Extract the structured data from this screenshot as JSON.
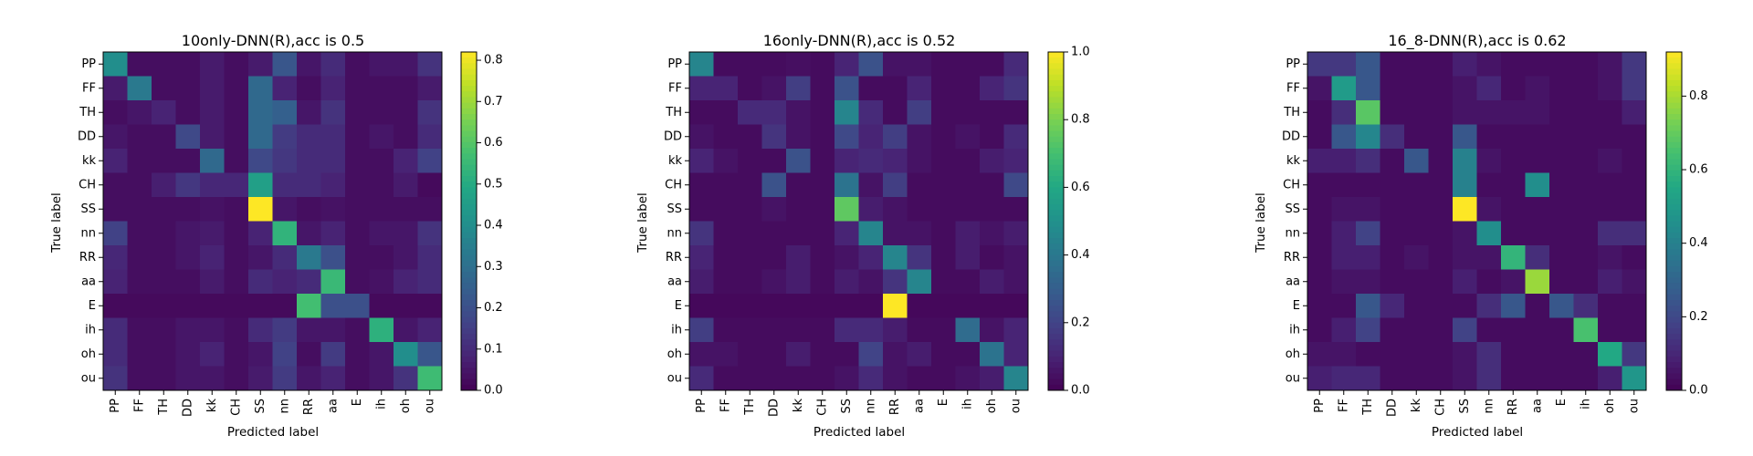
{
  "chart_data": [
    {
      "type": "heatmap",
      "title": "10only-DNN(R),acc is 0.5",
      "xlabel": "Predicted label",
      "ylabel": "True label",
      "labels": [
        "PP",
        "FF",
        "TH",
        "DD",
        "kk",
        "CH",
        "SS",
        "nn",
        "RR",
        "aa",
        "E",
        "ih",
        "oh",
        "ou"
      ],
      "colorbar": {
        "range": [
          0,
          0.82
        ],
        "ticks": [
          "0.0",
          "0.1",
          "0.2",
          "0.3",
          "0.4",
          "0.5",
          "0.6",
          "0.7",
          "0.8"
        ]
      },
      "colormap": "viridis",
      "matrix": [
        [
          0.4,
          0.03,
          0.03,
          0.03,
          0.06,
          0.03,
          0.06,
          0.22,
          0.05,
          0.1,
          0.03,
          0.05,
          0.05,
          0.12
        ],
        [
          0.06,
          0.33,
          0.03,
          0.03,
          0.06,
          0.03,
          0.28,
          0.08,
          0.03,
          0.08,
          0.03,
          0.03,
          0.03,
          0.06
        ],
        [
          0.03,
          0.05,
          0.08,
          0.03,
          0.06,
          0.03,
          0.28,
          0.25,
          0.05,
          0.12,
          0.03,
          0.03,
          0.03,
          0.12
        ],
        [
          0.05,
          0.03,
          0.03,
          0.18,
          0.06,
          0.03,
          0.28,
          0.14,
          0.1,
          0.1,
          0.03,
          0.05,
          0.03,
          0.1
        ],
        [
          0.08,
          0.03,
          0.03,
          0.03,
          0.28,
          0.03,
          0.18,
          0.13,
          0.1,
          0.1,
          0.03,
          0.03,
          0.08,
          0.16
        ],
        [
          0.03,
          0.03,
          0.07,
          0.13,
          0.09,
          0.09,
          0.46,
          0.1,
          0.1,
          0.08,
          0.03,
          0.03,
          0.06,
          0.02
        ],
        [
          0.03,
          0.03,
          0.03,
          0.03,
          0.04,
          0.03,
          0.82,
          0.05,
          0.03,
          0.04,
          0.03,
          0.03,
          0.03,
          0.03
        ],
        [
          0.16,
          0.03,
          0.03,
          0.05,
          0.06,
          0.03,
          0.08,
          0.53,
          0.05,
          0.08,
          0.03,
          0.05,
          0.05,
          0.12
        ],
        [
          0.09,
          0.03,
          0.03,
          0.05,
          0.08,
          0.03,
          0.05,
          0.1,
          0.33,
          0.2,
          0.03,
          0.03,
          0.05,
          0.1
        ],
        [
          0.08,
          0.03,
          0.03,
          0.03,
          0.06,
          0.03,
          0.1,
          0.08,
          0.1,
          0.55,
          0.03,
          0.04,
          0.08,
          0.1
        ],
        [
          0.02,
          0.02,
          0.02,
          0.02,
          0.02,
          0.02,
          0.02,
          0.02,
          0.57,
          0.2,
          0.2,
          0.02,
          0.02,
          0.02
        ],
        [
          0.1,
          0.03,
          0.03,
          0.05,
          0.05,
          0.03,
          0.1,
          0.14,
          0.05,
          0.05,
          0.03,
          0.52,
          0.05,
          0.08
        ],
        [
          0.1,
          0.03,
          0.03,
          0.05,
          0.08,
          0.03,
          0.05,
          0.16,
          0.03,
          0.14,
          0.03,
          0.05,
          0.4,
          0.22
        ],
        [
          0.12,
          0.03,
          0.03,
          0.05,
          0.05,
          0.03,
          0.06,
          0.14,
          0.05,
          0.08,
          0.03,
          0.05,
          0.12,
          0.56
        ]
      ]
    },
    {
      "type": "heatmap",
      "title": "16only-DNN(R),acc is 0.52",
      "xlabel": "Predicted label",
      "ylabel": "True label",
      "labels": [
        "PP",
        "FF",
        "TH",
        "DD",
        "kk",
        "CH",
        "SS",
        "nn",
        "RR",
        "aa",
        "E",
        "ih",
        "oh",
        "ou"
      ],
      "colorbar": {
        "range": [
          0,
          1.0
        ],
        "ticks": [
          "0.0",
          "0.2",
          "0.4",
          "0.6",
          "0.8",
          "1.0"
        ]
      },
      "colormap": "viridis",
      "matrix": [
        [
          0.45,
          0.03,
          0.03,
          0.03,
          0.04,
          0.03,
          0.1,
          0.25,
          0.05,
          0.05,
          0.03,
          0.03,
          0.03,
          0.12
        ],
        [
          0.1,
          0.1,
          0.03,
          0.05,
          0.18,
          0.03,
          0.25,
          0.03,
          0.03,
          0.1,
          0.03,
          0.03,
          0.1,
          0.15
        ],
        [
          0.03,
          0.03,
          0.12,
          0.12,
          0.05,
          0.03,
          0.45,
          0.12,
          0.03,
          0.18,
          0.03,
          0.03,
          0.03,
          0.03
        ],
        [
          0.05,
          0.03,
          0.03,
          0.15,
          0.05,
          0.03,
          0.22,
          0.1,
          0.18,
          0.05,
          0.03,
          0.05,
          0.03,
          0.12
        ],
        [
          0.1,
          0.05,
          0.03,
          0.03,
          0.25,
          0.03,
          0.1,
          0.12,
          0.1,
          0.05,
          0.03,
          0.03,
          0.08,
          0.1
        ],
        [
          0.03,
          0.03,
          0.03,
          0.25,
          0.03,
          0.03,
          0.38,
          0.05,
          0.18,
          0.03,
          0.03,
          0.03,
          0.03,
          0.22
        ],
        [
          0.03,
          0.03,
          0.03,
          0.05,
          0.03,
          0.03,
          0.75,
          0.08,
          0.05,
          0.03,
          0.03,
          0.03,
          0.03,
          0.03
        ],
        [
          0.15,
          0.03,
          0.03,
          0.03,
          0.03,
          0.03,
          0.1,
          0.45,
          0.05,
          0.05,
          0.03,
          0.08,
          0.05,
          0.08
        ],
        [
          0.1,
          0.03,
          0.03,
          0.03,
          0.08,
          0.03,
          0.05,
          0.1,
          0.45,
          0.15,
          0.03,
          0.08,
          0.03,
          0.05
        ],
        [
          0.08,
          0.03,
          0.03,
          0.05,
          0.08,
          0.03,
          0.08,
          0.05,
          0.15,
          0.45,
          0.03,
          0.03,
          0.08,
          0.05
        ],
        [
          0.02,
          0.02,
          0.02,
          0.02,
          0.02,
          0.02,
          0.02,
          0.02,
          1.0,
          0.02,
          0.02,
          0.02,
          0.02,
          0.02
        ],
        [
          0.18,
          0.03,
          0.03,
          0.03,
          0.03,
          0.03,
          0.12,
          0.12,
          0.08,
          0.03,
          0.03,
          0.35,
          0.05,
          0.1
        ],
        [
          0.05,
          0.05,
          0.03,
          0.03,
          0.08,
          0.03,
          0.03,
          0.2,
          0.05,
          0.08,
          0.03,
          0.03,
          0.38,
          0.1
        ],
        [
          0.12,
          0.03,
          0.03,
          0.03,
          0.03,
          0.03,
          0.05,
          0.12,
          0.05,
          0.03,
          0.03,
          0.05,
          0.08,
          0.45
        ]
      ]
    },
    {
      "type": "heatmap",
      "title": "16_8-DNN(R),acc is 0.62",
      "xlabel": "Predicted label",
      "ylabel": "True label",
      "labels": [
        "PP",
        "FF",
        "TH",
        "DD",
        "kk",
        "CH",
        "SS",
        "nn",
        "RR",
        "aa",
        "E",
        "ih",
        "oh",
        "ou"
      ],
      "colorbar": {
        "range": [
          0,
          0.92
        ],
        "ticks": [
          "0.0",
          "0.2",
          "0.4",
          "0.6",
          "0.8"
        ]
      },
      "colormap": "viridis",
      "matrix": [
        [
          0.15,
          0.15,
          0.25,
          0.03,
          0.03,
          0.03,
          0.08,
          0.05,
          0.03,
          0.03,
          0.03,
          0.03,
          0.05,
          0.15
        ],
        [
          0.05,
          0.5,
          0.25,
          0.03,
          0.03,
          0.03,
          0.05,
          0.1,
          0.03,
          0.05,
          0.03,
          0.03,
          0.05,
          0.15
        ],
        [
          0.03,
          0.12,
          0.68,
          0.03,
          0.03,
          0.03,
          0.05,
          0.05,
          0.05,
          0.05,
          0.03,
          0.03,
          0.03,
          0.08
        ],
        [
          0.03,
          0.25,
          0.42,
          0.12,
          0.03,
          0.03,
          0.25,
          0.03,
          0.03,
          0.03,
          0.03,
          0.03,
          0.03,
          0.03
        ],
        [
          0.08,
          0.08,
          0.12,
          0.03,
          0.25,
          0.03,
          0.4,
          0.05,
          0.03,
          0.03,
          0.03,
          0.03,
          0.05,
          0.03
        ],
        [
          0.03,
          0.03,
          0.03,
          0.03,
          0.03,
          0.03,
          0.4,
          0.03,
          0.03,
          0.45,
          0.03,
          0.03,
          0.03,
          0.03
        ],
        [
          0.03,
          0.05,
          0.05,
          0.03,
          0.03,
          0.03,
          0.92,
          0.05,
          0.03,
          0.03,
          0.03,
          0.03,
          0.03,
          0.03
        ],
        [
          0.03,
          0.08,
          0.18,
          0.03,
          0.03,
          0.03,
          0.05,
          0.45,
          0.03,
          0.03,
          0.03,
          0.03,
          0.12,
          0.12
        ],
        [
          0.03,
          0.08,
          0.08,
          0.03,
          0.05,
          0.03,
          0.05,
          0.05,
          0.6,
          0.12,
          0.03,
          0.03,
          0.05,
          0.03
        ],
        [
          0.03,
          0.05,
          0.05,
          0.03,
          0.03,
          0.03,
          0.08,
          0.03,
          0.05,
          0.78,
          0.03,
          0.03,
          0.08,
          0.05
        ],
        [
          0.03,
          0.03,
          0.25,
          0.1,
          0.03,
          0.03,
          0.03,
          0.12,
          0.25,
          0.03,
          0.25,
          0.12,
          0.03,
          0.03
        ],
        [
          0.03,
          0.08,
          0.18,
          0.03,
          0.03,
          0.03,
          0.18,
          0.03,
          0.03,
          0.03,
          0.03,
          0.65,
          0.03,
          0.03
        ],
        [
          0.05,
          0.05,
          0.03,
          0.03,
          0.03,
          0.03,
          0.05,
          0.12,
          0.03,
          0.03,
          0.03,
          0.03,
          0.55,
          0.15
        ],
        [
          0.08,
          0.1,
          0.1,
          0.03,
          0.03,
          0.03,
          0.05,
          0.12,
          0.03,
          0.03,
          0.03,
          0.03,
          0.08,
          0.48
        ]
      ]
    }
  ]
}
